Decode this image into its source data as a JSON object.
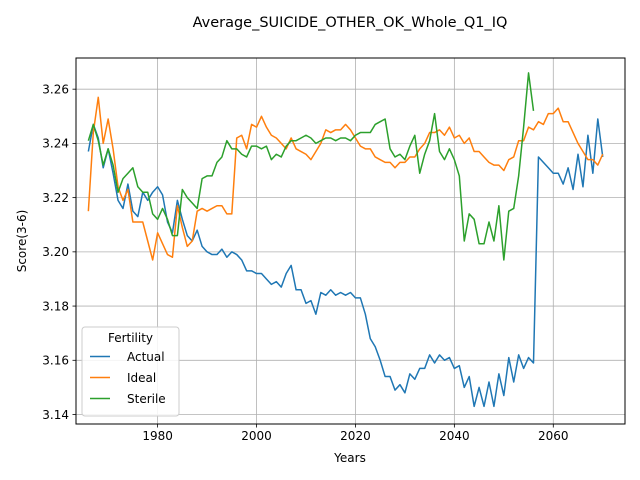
{
  "chart_data": {
    "type": "line",
    "title": "Average_SUICIDE_OTHER_OK_Whole_Q1_IQ",
    "xlabel": "Years",
    "ylabel": "Score(3-6)",
    "xlim": [
      1963.5,
      2074.5
    ],
    "ylim": [
      3.1365,
      3.2715
    ],
    "xticks": [
      1980,
      2000,
      2020,
      2040,
      2060
    ],
    "yticks": [
      3.14,
      3.16,
      3.18,
      3.2,
      3.22,
      3.24,
      3.26
    ],
    "ytick_labels": [
      "3.14",
      "3.16",
      "3.18",
      "3.20",
      "3.22",
      "3.24",
      "3.26"
    ],
    "grid": true,
    "legend": {
      "title": "Fertility",
      "placement": "lower-left"
    },
    "colors": {
      "Actual": "#1f77b4",
      "Ideal": "#ff7f0e",
      "Sterile": "#2ca02c"
    },
    "series": [
      {
        "name": "Actual",
        "x": [
          1966,
          1967,
          1968,
          1969,
          1970,
          1971,
          1972,
          1973,
          1974,
          1975,
          1976,
          1977,
          1978,
          1979,
          1980,
          1981,
          1982,
          1983,
          1984,
          1985,
          1986,
          1987,
          1988,
          1989,
          1990,
          1991,
          1992,
          1993,
          1994,
          1995,
          1996,
          1997,
          1998,
          1999,
          2000,
          2001,
          2002,
          2003,
          2004,
          2005,
          2006,
          2007,
          2008,
          2009,
          2010,
          2011,
          2012,
          2013,
          2014,
          2015,
          2016,
          2017,
          2018,
          2019,
          2020,
          2021,
          2022,
          2023,
          2024,
          2025,
          2026,
          2027,
          2028,
          2029,
          2030,
          2031,
          2032,
          2033,
          2034,
          2035,
          2036,
          2037,
          2038,
          2039,
          2040,
          2041,
          2042,
          2043,
          2044,
          2045,
          2046,
          2047,
          2048,
          2049,
          2050,
          2051,
          2052,
          2053,
          2054,
          2055,
          2056,
          2057,
          2058,
          2059,
          2060,
          2061,
          2062,
          2063,
          2064,
          2065,
          2066,
          2067,
          2068,
          2069,
          2070
        ],
        "y": [
          3.237,
          3.247,
          3.242,
          3.231,
          3.238,
          3.229,
          3.219,
          3.216,
          3.225,
          3.215,
          3.213,
          3.222,
          3.219,
          3.222,
          3.224,
          3.221,
          3.211,
          3.207,
          3.219,
          3.212,
          3.206,
          3.204,
          3.208,
          3.202,
          3.2,
          3.199,
          3.199,
          3.201,
          3.198,
          3.2,
          3.199,
          3.197,
          3.193,
          3.193,
          3.192,
          3.192,
          3.19,
          3.188,
          3.189,
          3.187,
          3.192,
          3.195,
          3.186,
          3.186,
          3.181,
          3.182,
          3.177,
          3.185,
          3.184,
          3.186,
          3.184,
          3.185,
          3.184,
          3.185,
          3.183,
          3.183,
          3.177,
          3.168,
          3.165,
          3.16,
          3.154,
          3.154,
          3.149,
          3.151,
          3.148,
          3.155,
          3.153,
          3.157,
          3.157,
          3.162,
          3.159,
          3.162,
          3.16,
          3.161,
          3.157,
          3.158,
          3.15,
          3.154,
          3.143,
          3.15,
          3.143,
          3.152,
          3.143,
          3.155,
          3.147,
          3.161,
          3.152,
          3.162,
          3.157,
          3.161,
          3.159,
          3.235,
          3.233,
          3.231,
          3.229,
          3.229,
          3.225,
          3.231,
          3.223,
          3.236,
          3.224,
          3.243,
          3.229,
          3.249,
          3.235
        ]
      },
      {
        "name": "Ideal",
        "x": [
          1966,
          1967,
          1968,
          1969,
          1970,
          1971,
          1972,
          1973,
          1974,
          1975,
          1976,
          1977,
          1978,
          1979,
          1980,
          1981,
          1982,
          1983,
          1984,
          1985,
          1986,
          1987,
          1988,
          1989,
          1990,
          1991,
          1992,
          1993,
          1994,
          1995,
          1996,
          1997,
          1998,
          1999,
          2000,
          2001,
          2002,
          2003,
          2004,
          2005,
          2006,
          2007,
          2008,
          2009,
          2010,
          2011,
          2012,
          2013,
          2014,
          2015,
          2016,
          2017,
          2018,
          2019,
          2020,
          2021,
          2022,
          2023,
          2024,
          2025,
          2026,
          2027,
          2028,
          2029,
          2030,
          2031,
          2032,
          2033,
          2034,
          2035,
          2036,
          2037,
          2038,
          2039,
          2040,
          2041,
          2042,
          2043,
          2044,
          2045,
          2046,
          2047,
          2048,
          2049,
          2050,
          2051,
          2052,
          2053,
          2054,
          2055,
          2056,
          2057,
          2058,
          2059,
          2060,
          2061,
          2062,
          2063,
          2064,
          2065,
          2066,
          2067,
          2068,
          2069,
          2070
        ],
        "y": [
          3.215,
          3.244,
          3.257,
          3.24,
          3.249,
          3.238,
          3.224,
          3.219,
          3.223,
          3.211,
          3.211,
          3.211,
          3.204,
          3.197,
          3.207,
          3.203,
          3.199,
          3.198,
          3.217,
          3.209,
          3.202,
          3.204,
          3.215,
          3.216,
          3.215,
          3.216,
          3.217,
          3.217,
          3.214,
          3.214,
          3.242,
          3.243,
          3.238,
          3.247,
          3.246,
          3.25,
          3.246,
          3.243,
          3.242,
          3.24,
          3.238,
          3.242,
          3.238,
          3.237,
          3.236,
          3.234,
          3.237,
          3.24,
          3.245,
          3.244,
          3.245,
          3.245,
          3.247,
          3.245,
          3.242,
          3.239,
          3.238,
          3.238,
          3.235,
          3.234,
          3.233,
          3.233,
          3.231,
          3.233,
          3.233,
          3.235,
          3.235,
          3.238,
          3.24,
          3.244,
          3.244,
          3.245,
          3.243,
          3.246,
          3.242,
          3.243,
          3.24,
          3.242,
          3.237,
          3.237,
          3.235,
          3.233,
          3.232,
          3.232,
          3.23,
          3.234,
          3.235,
          3.241,
          3.241,
          3.246,
          3.245,
          3.248,
          3.247,
          3.251,
          3.251,
          3.253,
          3.248,
          3.248,
          3.244,
          3.24,
          3.237,
          3.234,
          3.234,
          3.232,
          3.236
        ]
      },
      {
        "name": "Sterile",
        "x": [
          1966,
          1967,
          1968,
          1969,
          1970,
          1971,
          1972,
          1973,
          1974,
          1975,
          1976,
          1977,
          1978,
          1979,
          1980,
          1981,
          1982,
          1983,
          1984,
          1985,
          1986,
          1987,
          1988,
          1989,
          1990,
          1991,
          1992,
          1993,
          1994,
          1995,
          1996,
          1997,
          1998,
          1999,
          2000,
          2001,
          2002,
          2003,
          2004,
          2005,
          2006,
          2007,
          2008,
          2009,
          2010,
          2011,
          2012,
          2013,
          2014,
          2015,
          2016,
          2017,
          2018,
          2019,
          2020,
          2021,
          2022,
          2023,
          2024,
          2025,
          2026,
          2027,
          2028,
          2029,
          2030,
          2031,
          2032,
          2033,
          2034,
          2035,
          2036,
          2037,
          2038,
          2039,
          2040,
          2041,
          2042,
          2043,
          2044,
          2045,
          2046,
          2047,
          2048,
          2049,
          2050,
          2051,
          2052,
          2053,
          2054,
          2055,
          2056
        ],
        "y": [
          3.241,
          3.247,
          3.241,
          3.232,
          3.238,
          3.232,
          3.222,
          3.227,
          3.229,
          3.231,
          3.224,
          3.222,
          3.222,
          3.214,
          3.212,
          3.216,
          3.212,
          3.206,
          3.206,
          3.223,
          3.22,
          3.218,
          3.216,
          3.227,
          3.228,
          3.228,
          3.233,
          3.235,
          3.241,
          3.238,
          3.238,
          3.236,
          3.235,
          3.239,
          3.239,
          3.238,
          3.239,
          3.234,
          3.236,
          3.235,
          3.239,
          3.241,
          3.241,
          3.242,
          3.243,
          3.242,
          3.24,
          3.241,
          3.242,
          3.242,
          3.241,
          3.242,
          3.242,
          3.241,
          3.243,
          3.244,
          3.244,
          3.244,
          3.247,
          3.248,
          3.249,
          3.238,
          3.235,
          3.236,
          3.234,
          3.239,
          3.243,
          3.229,
          3.236,
          3.241,
          3.251,
          3.237,
          3.234,
          3.238,
          3.234,
          3.228,
          3.204,
          3.214,
          3.212,
          3.203,
          3.203,
          3.211,
          3.204,
          3.217,
          3.197,
          3.215,
          3.216,
          3.228,
          3.246,
          3.266,
          3.252
        ]
      }
    ]
  }
}
